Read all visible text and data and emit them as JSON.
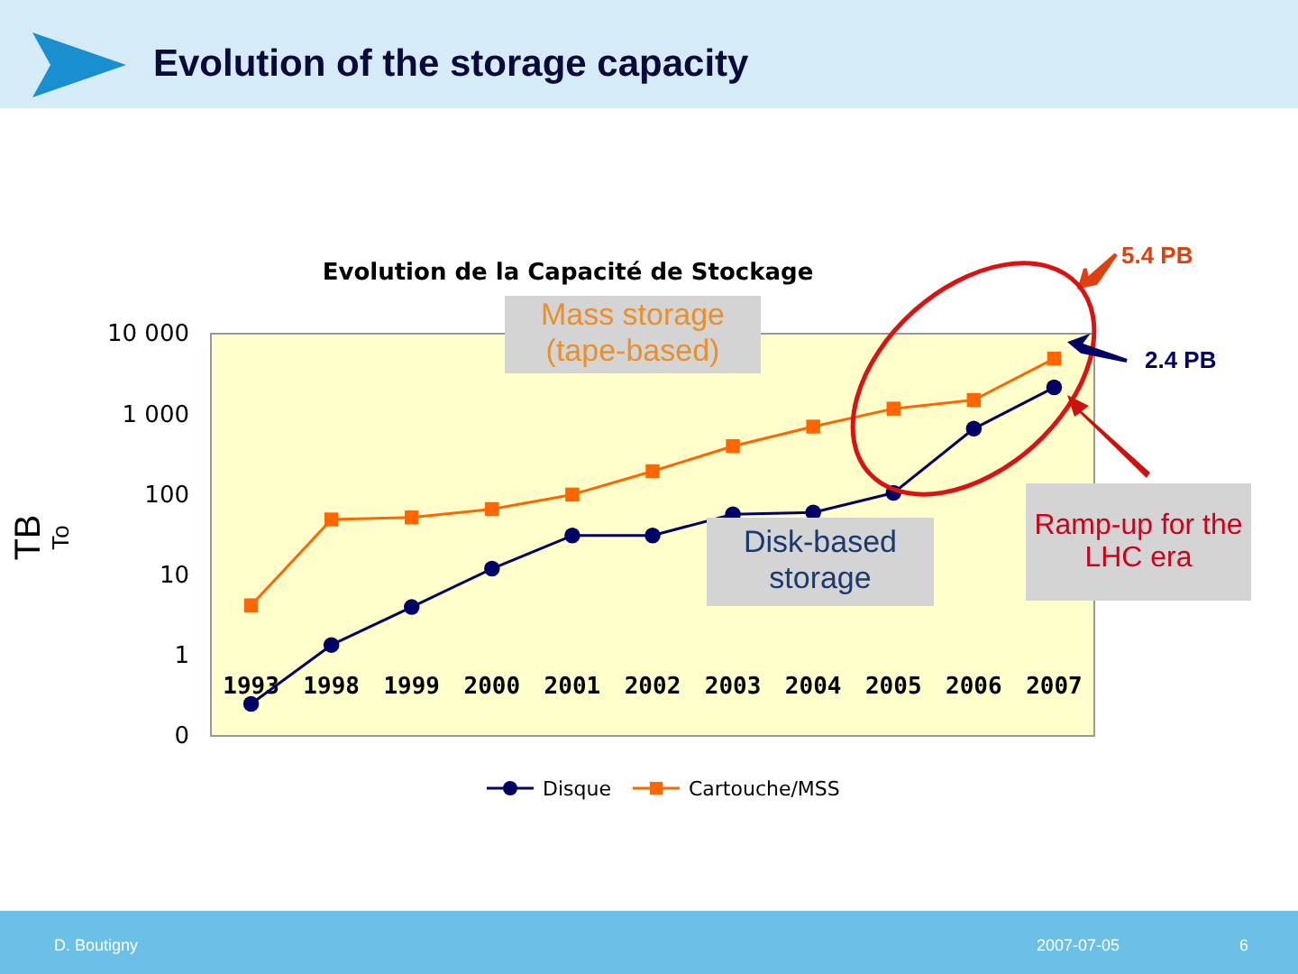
{
  "chart_data": {
    "type": "line",
    "title": "Evolution de la Capacité de Stockage",
    "subtitle": "Evolution of the storage capacity",
    "ylabel": "TB",
    "y2label": "To",
    "categories": [
      "1993",
      "1998",
      "1999",
      "2000",
      "2001",
      "2002",
      "2003",
      "2004",
      "2005",
      "2006",
      "2007"
    ],
    "series": [
      {
        "name": "Disque",
        "color": "#000066",
        "marker": "circle",
        "values": [
          0.25,
          1.35,
          4,
          12,
          31,
          31,
          57,
          60,
          105,
          660,
          2150
        ]
      },
      {
        "name": "Cartouche/MSS",
        "color": "#ff6600",
        "marker": "square",
        "values": [
          4.2,
          49,
          52,
          66,
          100,
          195,
          400,
          700,
          1170,
          1500,
          4900
        ]
      }
    ],
    "log": true,
    "ylim": [
      0.1,
      10000
    ],
    "yticks": [
      {
        "value": 0.1,
        "label": "0"
      },
      1,
      10,
      100,
      {
        "value": 1000,
        "label": "1 000"
      },
      {
        "value": 10000,
        "label": "10 000"
      }
    ],
    "grid": false,
    "legend": "bottom",
    "annotations": [
      "Mass storage (tape-based)",
      "Disk-based storage",
      "Ramp-up for the LHC era",
      "5.4 PB",
      "2.4 PB",
      "D. Boutigny",
      "2007-07-05",
      "6"
    ]
  }
}
